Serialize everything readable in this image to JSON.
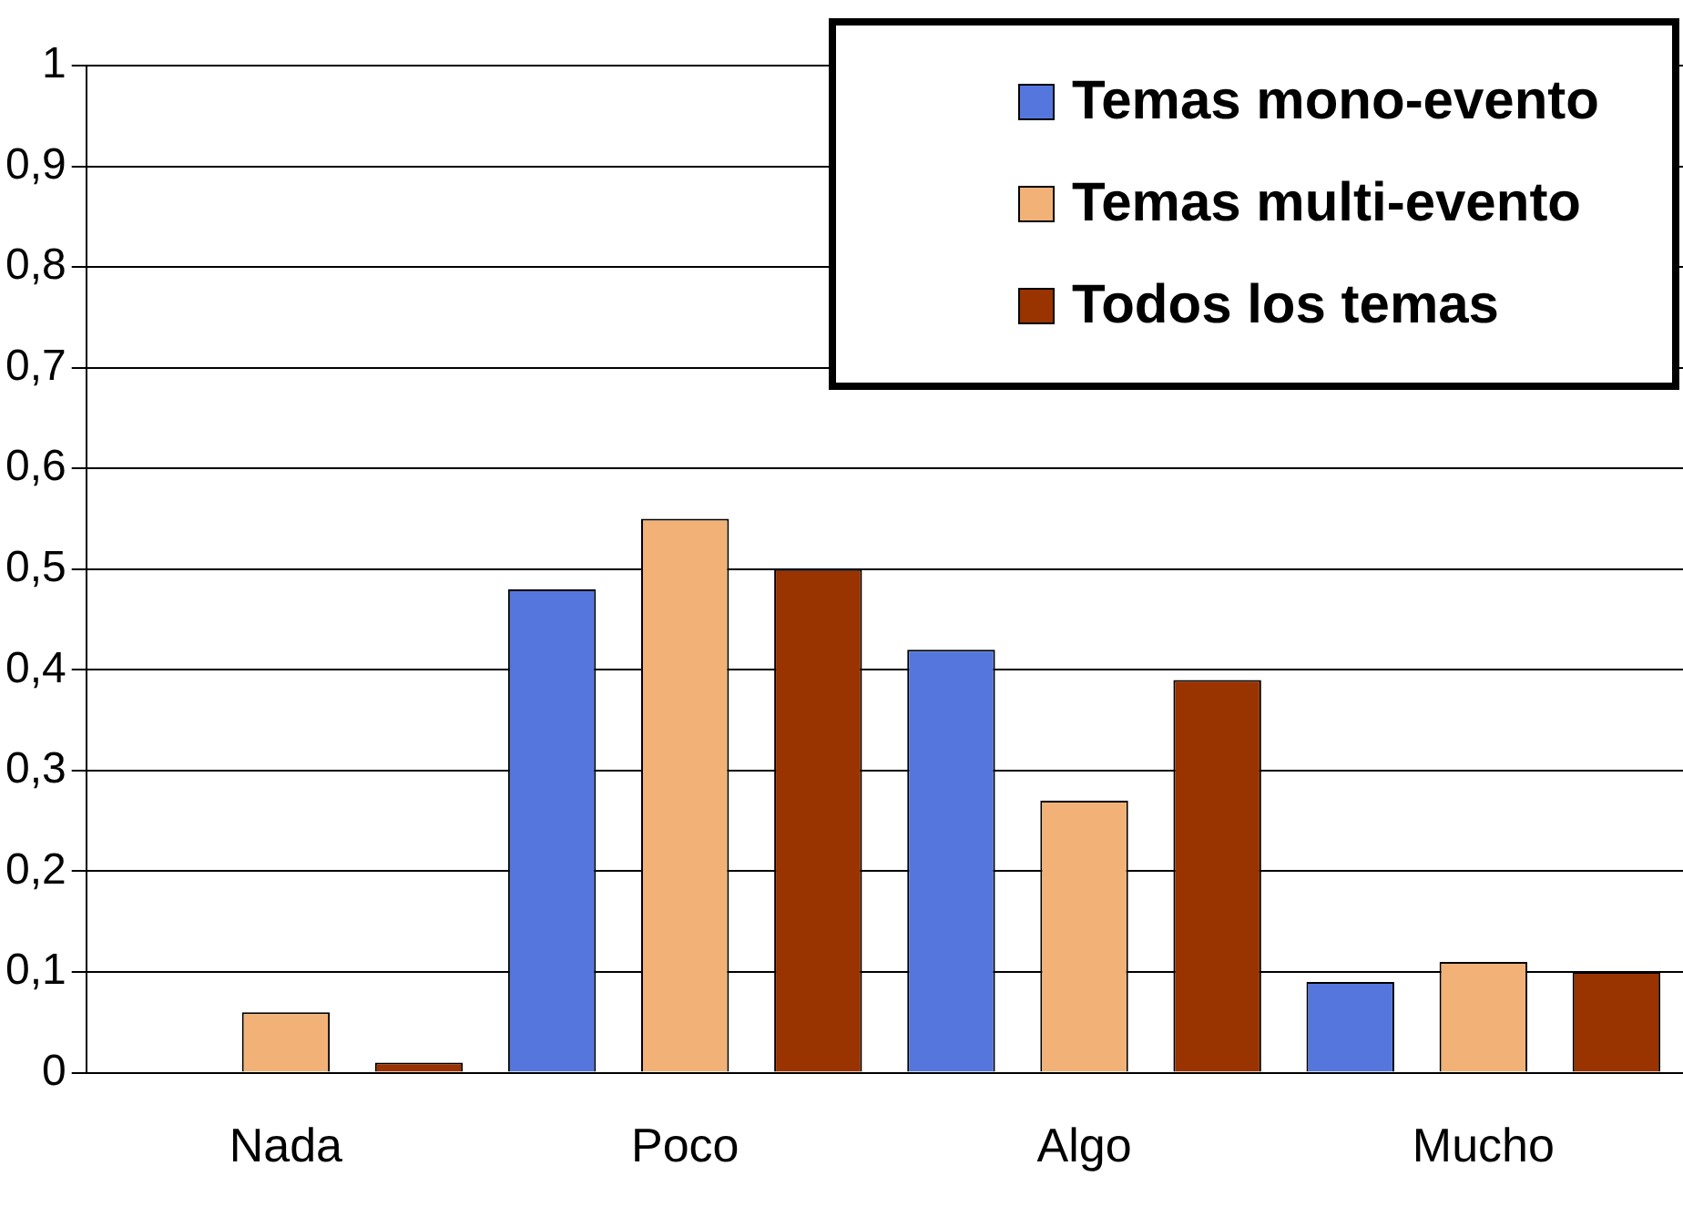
{
  "chart_data": {
    "type": "bar",
    "categories": [
      "Nada",
      "Poco",
      "Algo",
      "Mucho"
    ],
    "series": [
      {
        "name": "Temas mono-evento",
        "color": "#5577dd",
        "values": [
          0,
          0.48,
          0.42,
          0.09
        ]
      },
      {
        "name": "Temas multi-evento",
        "color": "#f2b277",
        "values": [
          0.06,
          0.55,
          0.27,
          0.11
        ]
      },
      {
        "name": "Todos los temas",
        "color": "#993300",
        "values": [
          0.01,
          0.5,
          0.39,
          0.1
        ]
      }
    ],
    "ylim": [
      0,
      1
    ],
    "yticks": [
      0,
      {
        "value": 0.1,
        "label": "0,1"
      },
      {
        "value": 0.2,
        "label": "0,2"
      },
      {
        "value": 0.3,
        "label": "0,3"
      },
      {
        "value": 0.4,
        "label": "0,4"
      },
      {
        "value": 0.5,
        "label": "0,5"
      },
      {
        "value": 0.6,
        "label": "0,6"
      },
      {
        "value": 0.7,
        "label": "0,7"
      },
      {
        "value": 0.8,
        "label": "0,8"
      },
      {
        "value": 0.9,
        "label": "0,9"
      },
      1
    ],
    "grid": "y",
    "legend": "top right"
  }
}
